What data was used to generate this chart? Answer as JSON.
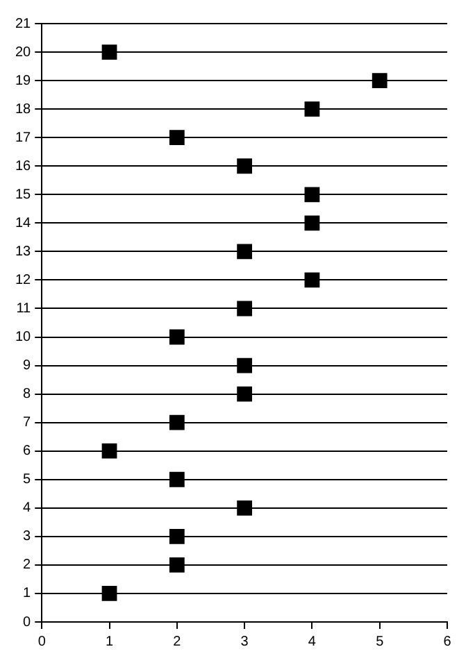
{
  "chart_data": {
    "type": "scatter",
    "x": [
      1,
      5,
      4,
      2,
      3,
      4,
      4,
      3,
      4,
      3,
      2,
      3,
      3,
      2,
      1,
      2,
      3,
      2,
      2,
      1
    ],
    "values": [
      20,
      19,
      18,
      17,
      16,
      15,
      14,
      13,
      12,
      11,
      10,
      9,
      8,
      7,
      6,
      5,
      4,
      3,
      2,
      1
    ],
    "color": "#000000",
    "marker": "square",
    "grid": "y",
    "legend": false,
    "xlim": [
      0,
      6
    ],
    "xticks": [
      0,
      1,
      2,
      3,
      4,
      5,
      6
    ],
    "ylim": [
      0,
      21
    ],
    "yticks": [
      0,
      1,
      2,
      3,
      4,
      5,
      6,
      7,
      8,
      9,
      10,
      11,
      12,
      13,
      14,
      15,
      16,
      17,
      18,
      19,
      20,
      21
    ]
  }
}
